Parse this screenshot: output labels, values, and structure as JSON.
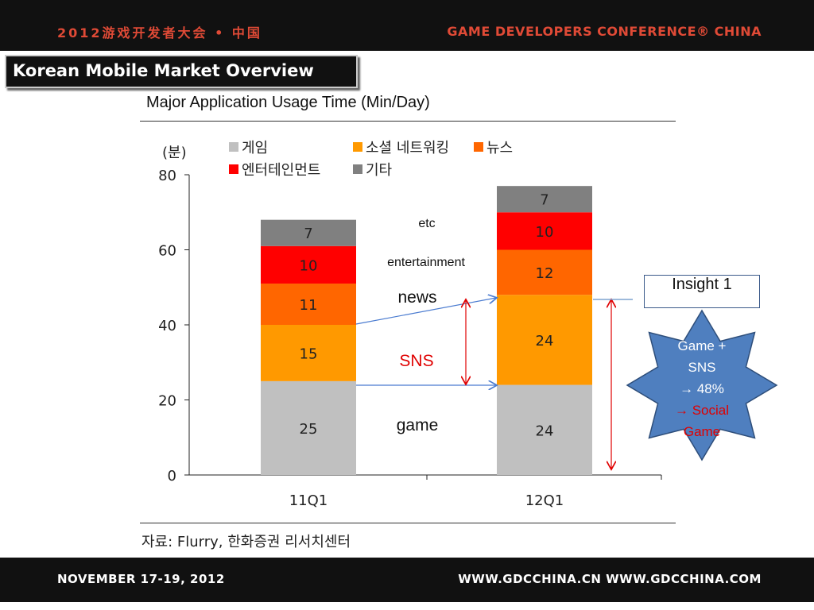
{
  "header": {
    "left_text": "2012游戏开发者大会 • 中国",
    "right_text": "GAME DEVELOPERS CONFERENCE® CHINA"
  },
  "slide_title": "Korean Mobile Market Overview",
  "subtitle": "Major Application Usage Time (Min/Day)",
  "source": "자료: Flurry, 한화증권 리서치센터",
  "footer": {
    "date": "NOVEMBER 17-19, 2012",
    "urls": "WWW.GDCCHINA.CN    WWW.GDCCHINA.COM"
  },
  "chart_data": {
    "type": "bar",
    "stacked": true,
    "unit_label": "(분)",
    "categories": [
      "11Q1",
      "12Q1"
    ],
    "ylim": [
      0,
      80
    ],
    "yticks": [
      "0",
      "20",
      "40",
      "60",
      "80"
    ],
    "series": [
      {
        "name": "게임",
        "values": [
          25,
          24
        ],
        "color": "#c0c0c0"
      },
      {
        "name": "소셜 네트워킹",
        "values": [
          15,
          24
        ],
        "color": "#ff9900"
      },
      {
        "name": "뉴스",
        "values": [
          11,
          12
        ],
        "color": "#ff6600"
      },
      {
        "name": "엔터테인먼트",
        "values": [
          10,
          10
        ],
        "color": "#ff0000"
      },
      {
        "name": "기타",
        "values": [
          7,
          7
        ],
        "color": "#808080"
      }
    ],
    "annotations": {
      "etc": "etc",
      "entertainment": "entertainment",
      "news": "news",
      "sns": "SNS",
      "game": "game"
    }
  },
  "insight": {
    "label": "Insight 1",
    "line1": "Game +",
    "line2": "SNS",
    "line3": "→  48%",
    "line4": "→  Social",
    "line5": "Game"
  },
  "colors": {
    "bar_dark": "#111111",
    "header_accent": "#e04a36",
    "star_fill": "#4f7fbf",
    "star_stroke": "#2e4e7a",
    "arrow_red": "#e00000",
    "arrow_blue": "#4a7bd0"
  }
}
